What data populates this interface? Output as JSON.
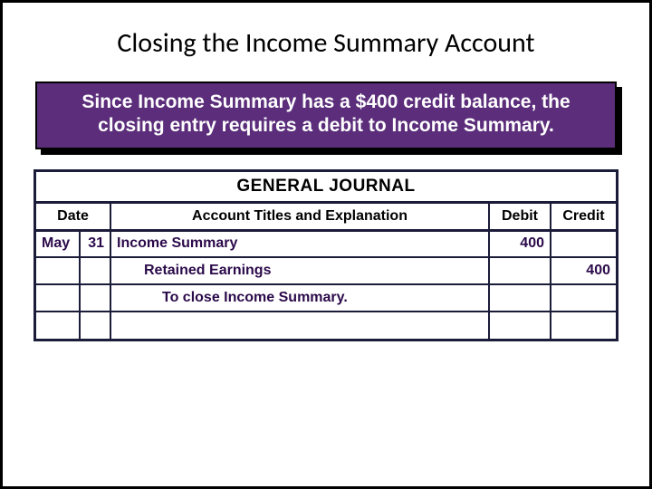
{
  "colors": {
    "slide_border": "#000000",
    "callout_bg": "#5b2d7a",
    "callout_text": "#ffffff",
    "journal_border": "#1b1b3a",
    "entry_text": "#2b0a4a",
    "background": "#ffffff"
  },
  "title": "Closing the Income Summary Account",
  "callout": "Since Income Summary has a $400 credit balance, the closing entry requires a debit to Income Summary.",
  "journal": {
    "header": "GENERAL JOURNAL",
    "columns": {
      "date": "Date",
      "explanation": "Account Titles and Explanation",
      "debit": "Debit",
      "credit": "Credit"
    },
    "rows": [
      {
        "month": "May",
        "day": "31",
        "explanation": "Income Summary",
        "debit": "400",
        "credit": "",
        "indent": 0
      },
      {
        "month": "",
        "day": "",
        "explanation": "Retained Earnings",
        "debit": "",
        "credit": "400",
        "indent": 1
      },
      {
        "month": "",
        "day": "",
        "explanation": "To close Income Summary.",
        "debit": "",
        "credit": "",
        "indent": 2
      },
      {
        "month": "",
        "day": "",
        "explanation": "",
        "debit": "",
        "credit": "",
        "indent": 0
      }
    ]
  }
}
